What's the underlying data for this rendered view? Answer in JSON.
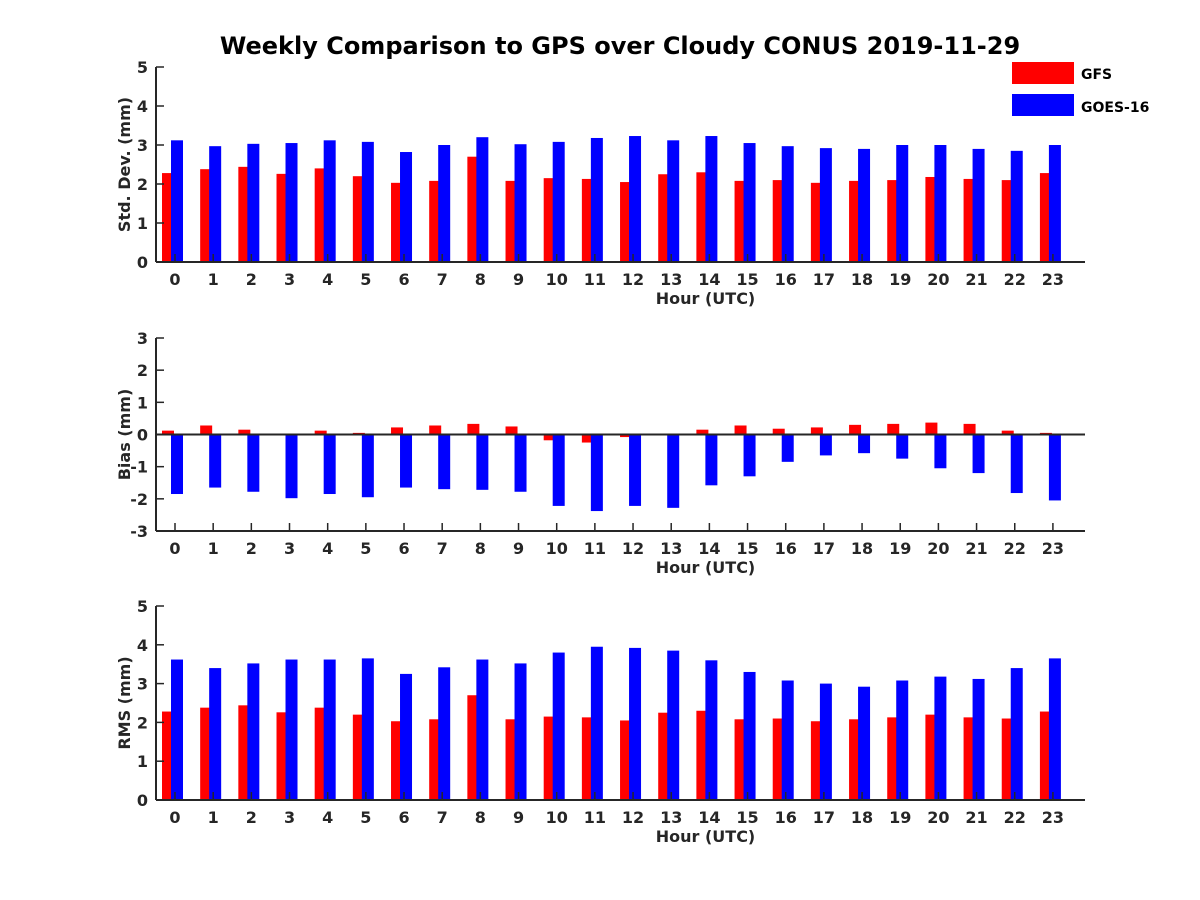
{
  "title": "Weekly Comparison to GPS over Cloudy CONUS 2019-11-29",
  "legend": [
    {
      "name": "GFS",
      "color": "#ff0000"
    },
    {
      "name": "GOES-16",
      "color": "#0000ff"
    }
  ],
  "chart_data": [
    {
      "type": "bar",
      "ylabel": "Std. Dev. (mm)",
      "xlabel": "Hour (UTC)",
      "ylim": [
        0,
        5
      ],
      "yticks": [
        0,
        1,
        2,
        3,
        4,
        5
      ],
      "categories": [
        "0",
        "1",
        "2",
        "3",
        "4",
        "5",
        "6",
        "7",
        "8",
        "9",
        "10",
        "11",
        "12",
        "13",
        "14",
        "15",
        "16",
        "17",
        "18",
        "19",
        "20",
        "21",
        "22",
        "23"
      ],
      "series": [
        {
          "name": "GFS",
          "color": "#ff0000",
          "values": [
            2.28,
            2.38,
            2.44,
            2.26,
            2.4,
            2.2,
            2.03,
            2.08,
            2.7,
            2.08,
            2.15,
            2.13,
            2.05,
            2.25,
            2.3,
            2.08,
            2.1,
            2.03,
            2.08,
            2.1,
            2.18,
            2.13,
            2.1,
            2.28
          ]
        },
        {
          "name": "GOES-16",
          "color": "#0000ff",
          "values": [
            3.12,
            2.97,
            3.03,
            3.05,
            3.12,
            3.08,
            2.82,
            3.0,
            3.2,
            3.02,
            3.08,
            3.18,
            3.23,
            3.12,
            3.23,
            3.05,
            2.97,
            2.92,
            2.9,
            3.0,
            3.0,
            2.9,
            2.85,
            3.0
          ]
        }
      ]
    },
    {
      "type": "bar",
      "ylabel": "Bias (mm)",
      "xlabel": "Hour (UTC)",
      "ylim": [
        -3,
        3
      ],
      "yticks": [
        -3,
        -2,
        -1,
        0,
        1,
        2,
        3
      ],
      "categories": [
        "0",
        "1",
        "2",
        "3",
        "4",
        "5",
        "6",
        "7",
        "8",
        "9",
        "10",
        "11",
        "12",
        "13",
        "14",
        "15",
        "16",
        "17",
        "18",
        "19",
        "20",
        "21",
        "22",
        "23"
      ],
      "series": [
        {
          "name": "GFS",
          "color": "#ff0000",
          "values": [
            0.12,
            0.28,
            0.15,
            0.0,
            0.12,
            0.05,
            0.22,
            0.28,
            0.33,
            0.25,
            -0.18,
            -0.25,
            -0.08,
            0.0,
            0.15,
            0.28,
            0.18,
            0.22,
            0.3,
            0.33,
            0.37,
            0.33,
            0.12,
            0.05
          ]
        },
        {
          "name": "GOES-16",
          "color": "#0000ff",
          "values": [
            -1.85,
            -1.65,
            -1.78,
            -1.98,
            -1.85,
            -1.95,
            -1.65,
            -1.7,
            -1.72,
            -1.78,
            -2.22,
            -2.38,
            -2.22,
            -2.28,
            -1.58,
            -1.3,
            -0.85,
            -0.65,
            -0.58,
            -0.75,
            -1.05,
            -1.2,
            -1.82,
            -2.05
          ]
        }
      ]
    },
    {
      "type": "bar",
      "ylabel": "RMS (mm)",
      "xlabel": "Hour (UTC)",
      "ylim": [
        0,
        5
      ],
      "yticks": [
        0,
        1,
        2,
        3,
        4,
        5
      ],
      "categories": [
        "0",
        "1",
        "2",
        "3",
        "4",
        "5",
        "6",
        "7",
        "8",
        "9",
        "10",
        "11",
        "12",
        "13",
        "14",
        "15",
        "16",
        "17",
        "18",
        "19",
        "20",
        "21",
        "22",
        "23"
      ],
      "series": [
        {
          "name": "GFS",
          "color": "#ff0000",
          "values": [
            2.28,
            2.38,
            2.44,
            2.26,
            2.38,
            2.2,
            2.03,
            2.08,
            2.7,
            2.08,
            2.15,
            2.13,
            2.05,
            2.25,
            2.3,
            2.08,
            2.1,
            2.03,
            2.08,
            2.13,
            2.2,
            2.13,
            2.1,
            2.28
          ]
        },
        {
          "name": "GOES-16",
          "color": "#0000ff",
          "values": [
            3.62,
            3.4,
            3.52,
            3.62,
            3.62,
            3.65,
            3.25,
            3.42,
            3.62,
            3.52,
            3.8,
            3.95,
            3.92,
            3.85,
            3.6,
            3.3,
            3.08,
            3.0,
            2.92,
            3.08,
            3.18,
            3.12,
            3.4,
            3.65
          ]
        }
      ]
    }
  ]
}
